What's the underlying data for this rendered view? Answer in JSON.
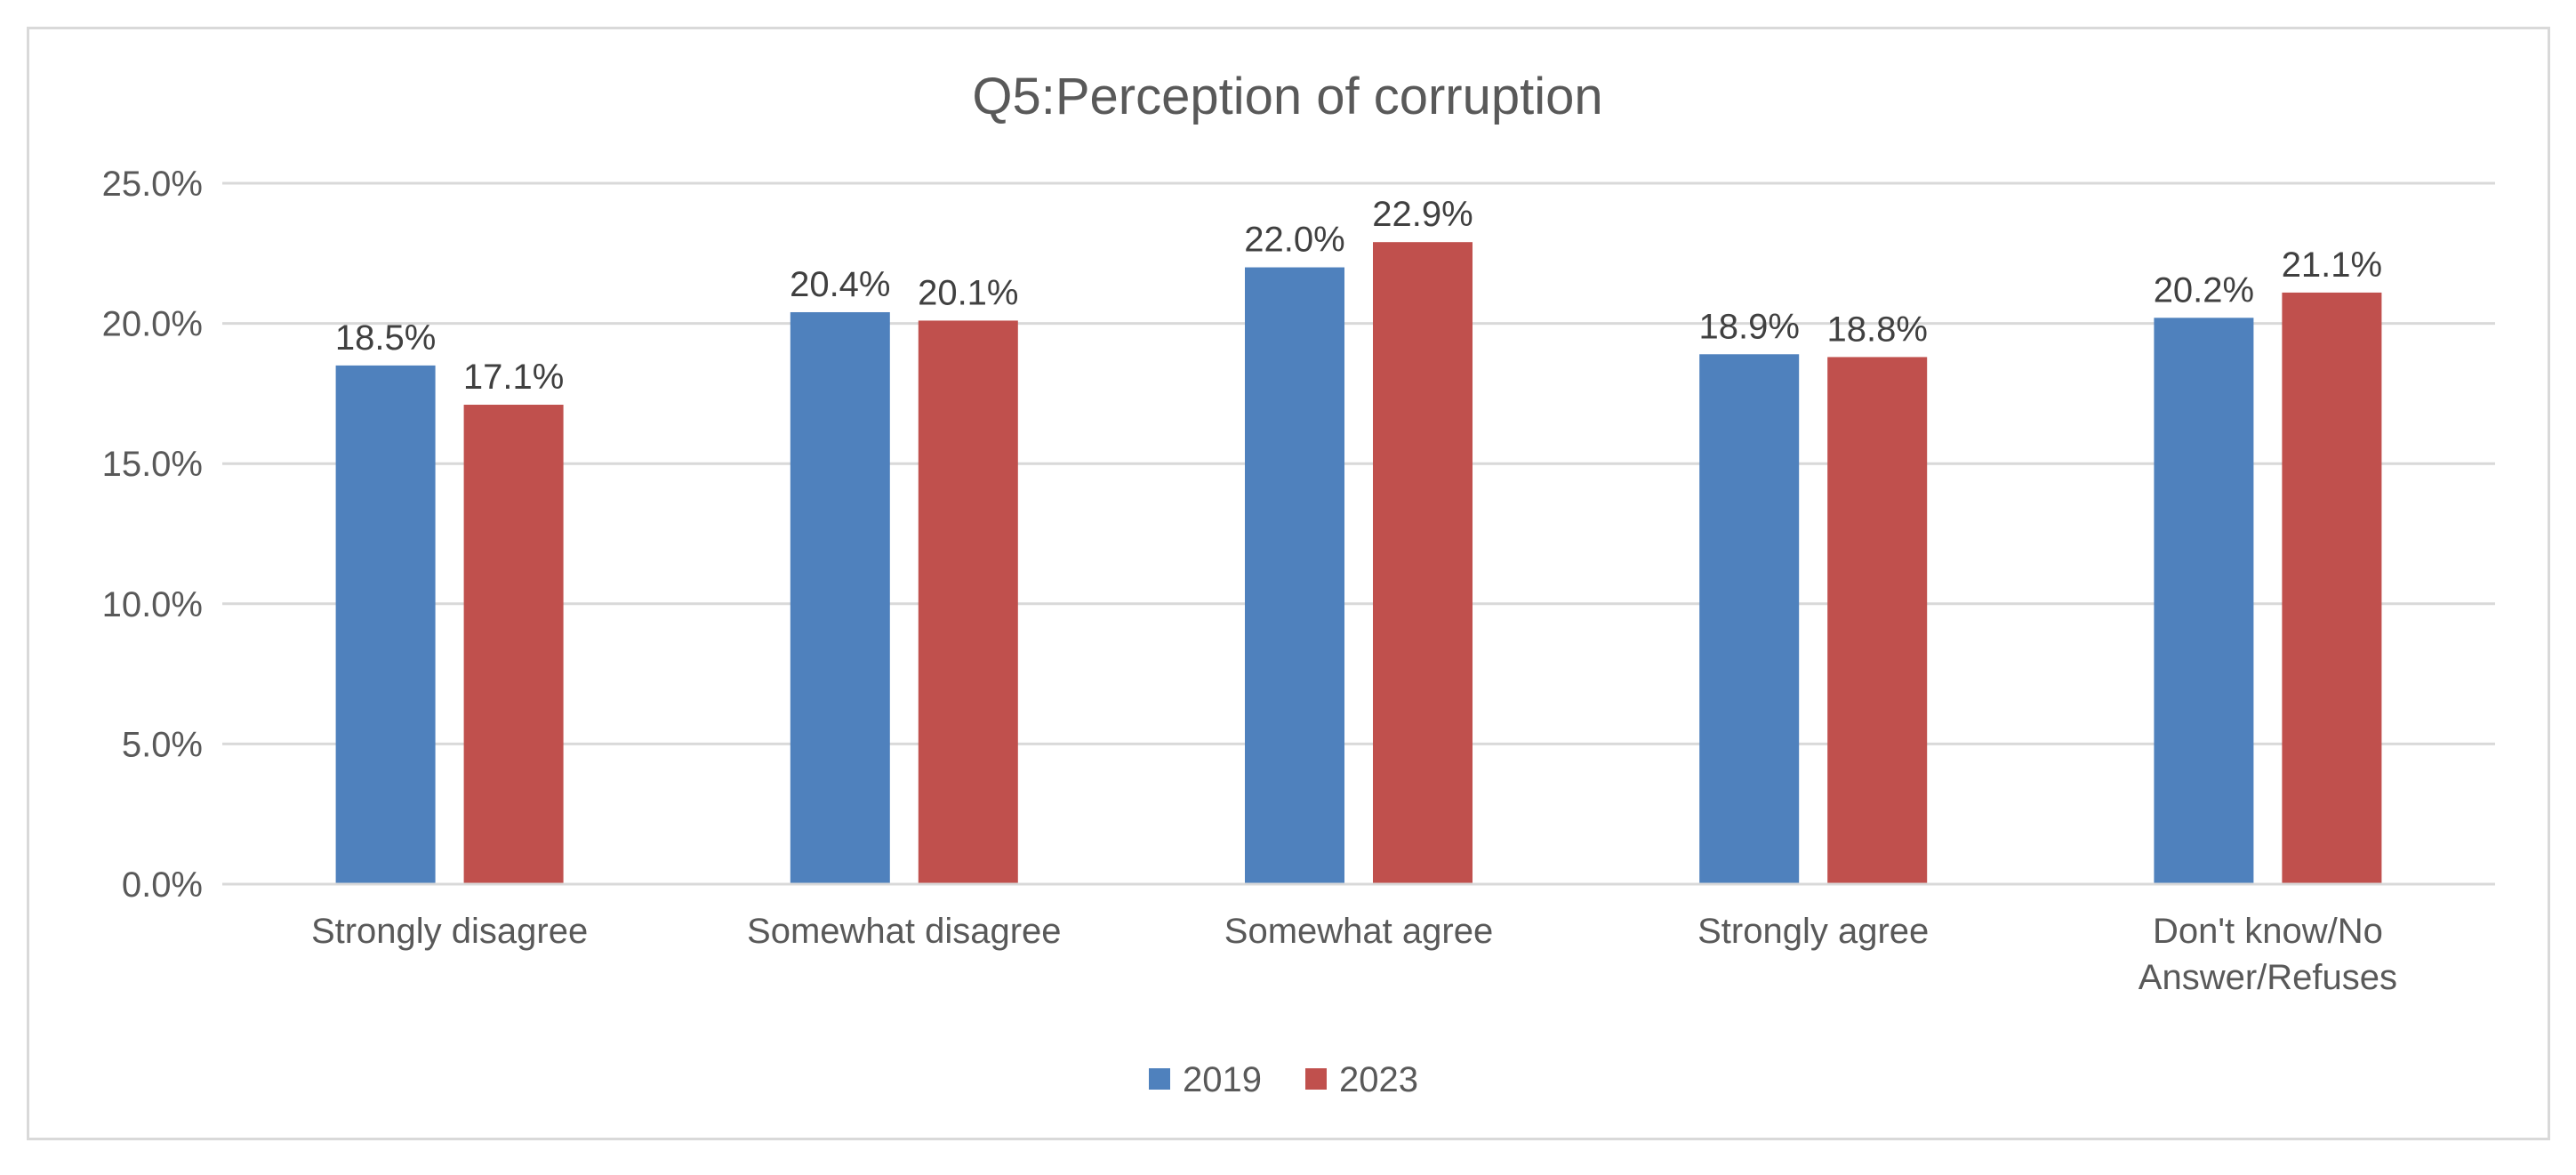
{
  "chart_data": {
    "type": "bar",
    "title": "Q5:Perception of corruption",
    "xlabel": "",
    "ylabel": "",
    "ylim": [
      0,
      25
    ],
    "yticks": [
      0,
      5,
      10,
      15,
      20,
      25
    ],
    "ytick_labels": [
      "0.0%",
      "5.0%",
      "10.0%",
      "15.0%",
      "20.0%",
      "25.0%"
    ],
    "grid": true,
    "legend_position": "bottom",
    "categories": [
      [
        "Strongly disagree"
      ],
      [
        "Somewhat disagree"
      ],
      [
        "Somewhat agree"
      ],
      [
        "Strongly agree"
      ],
      [
        "Don't know/No",
        "Answer/Refuses"
      ]
    ],
    "series": [
      {
        "name": "2019",
        "color": "#4f81bd",
        "values": [
          18.5,
          20.4,
          22.0,
          18.9,
          20.2
        ],
        "labels": [
          "18.5%",
          "20.4%",
          "22.0%",
          "18.9%",
          "20.2%"
        ]
      },
      {
        "name": "2023",
        "color": "#c0504d",
        "values": [
          17.1,
          20.1,
          22.9,
          18.8,
          21.1
        ],
        "labels": [
          "17.1%",
          "20.1%",
          "22.9%",
          "18.8%",
          "21.1%"
        ]
      }
    ]
  }
}
